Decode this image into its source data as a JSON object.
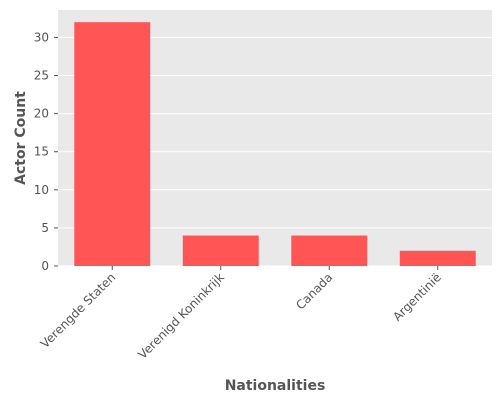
{
  "chart_data": {
    "type": "bar",
    "title": "",
    "xlabel": "Nationalities",
    "ylabel": "Actor Count",
    "categories": [
      "Verengde Staten",
      "Verenigd Koninkrijk",
      "Canada",
      "Argentinië"
    ],
    "values": [
      32,
      4,
      4,
      2
    ],
    "ylim": [
      0,
      33.6
    ],
    "yticks": [
      0,
      5,
      10,
      15,
      20,
      25,
      30
    ],
    "grid": true,
    "legend": "none",
    "colors": {
      "bar": "#ff5555",
      "plot_background": "#e9e9e9",
      "grid": "#ffffff",
      "text": "#555555"
    }
  }
}
